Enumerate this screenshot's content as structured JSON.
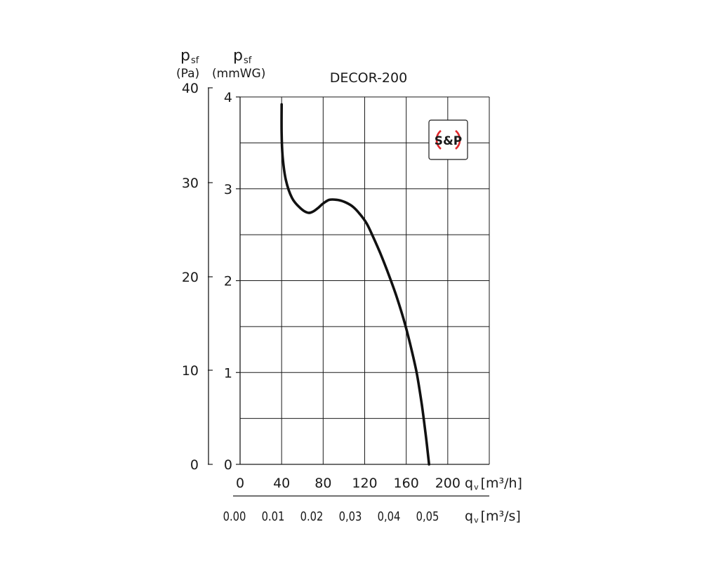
{
  "chart_data": {
    "type": "line",
    "title": "DECOR-200",
    "logo": {
      "text": "S&P",
      "accent_color": "#e0282c"
    },
    "y_left_outer": {
      "symbol": "p",
      "subscript": "sf",
      "unit": "(Pa)",
      "range": [
        0,
        40
      ],
      "ticks": [
        "0",
        "10",
        "20",
        "30",
        "40"
      ]
    },
    "y_left_inner": {
      "symbol": "p",
      "subscript": "sf",
      "unit": "(mmWG)",
      "range": [
        0,
        4
      ],
      "ticks": [
        "0",
        "1",
        "2",
        "3",
        "4"
      ]
    },
    "x_primary": {
      "symbol": "q",
      "subscript": "v",
      "unit": "[m³/h]",
      "range": [
        0,
        240
      ],
      "ticks": [
        "0",
        "40",
        "80",
        "120",
        "160",
        "200"
      ]
    },
    "x_secondary": {
      "symbol": "q",
      "subscript": "v",
      "unit": "[m³/s]",
      "ticks": [
        "0.00",
        "0.01",
        "0.02",
        "0,03",
        "0,04",
        "0,05"
      ]
    },
    "grid": true,
    "series": [
      {
        "color": "#111111",
        "x": [
          40,
          40,
          41,
          44,
          50,
          58,
          65,
          70,
          75,
          80,
          86,
          93,
          100,
          108,
          115,
          122,
          128,
          135,
          142,
          150,
          158,
          164,
          170,
          175,
          179,
          182
        ],
        "y": [
          39.2,
          36,
          33.5,
          31,
          29,
          27.9,
          27.4,
          27.5,
          27.9,
          28.4,
          28.8,
          28.8,
          28.6,
          28.1,
          27.3,
          26.2,
          24.8,
          23,
          21,
          18.5,
          15.6,
          13,
          10,
          6.5,
          3,
          0
        ]
      }
    ]
  }
}
